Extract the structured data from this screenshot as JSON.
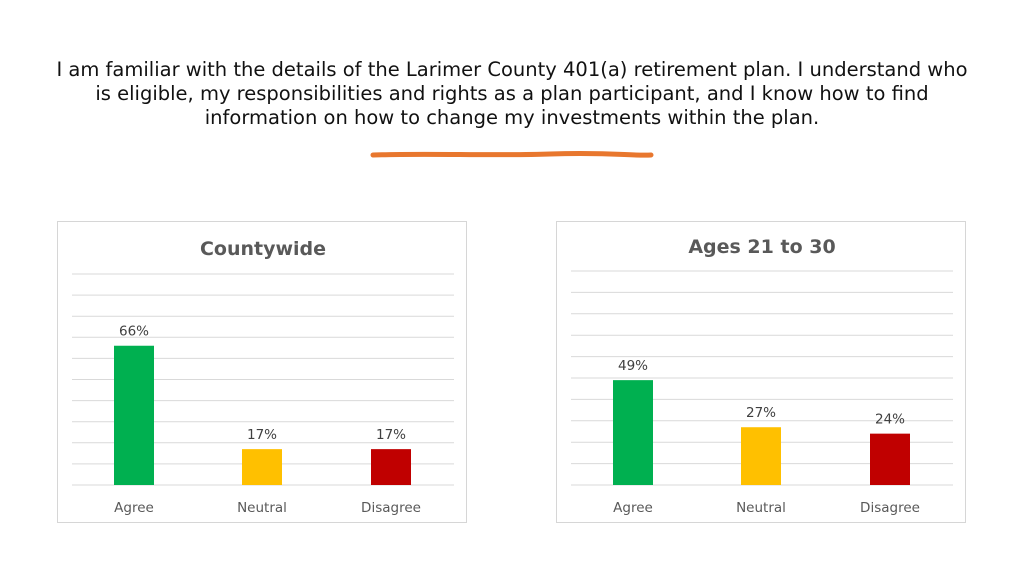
{
  "headline": "I am familiar with the details of the Larimer County 401(a) retirement plan. I understand who is eligible, my responsibilities and rights as a plan participant, and I know how to find information on how to change my investments within the plan.",
  "colors": {
    "accent_underline": "#e8772e",
    "agree": "#00b050",
    "neutral": "#ffc000",
    "disagree": "#c00000",
    "gridline": "#d9d9d9"
  },
  "chart_data": [
    {
      "type": "bar",
      "title": "Countywide",
      "categories": [
        "Agree",
        "Neutral",
        "Disagree"
      ],
      "values": [
        66,
        17,
        17
      ],
      "data_labels": [
        "66%",
        "17%",
        "17%"
      ],
      "bar_colors": [
        "#00b050",
        "#ffc000",
        "#c00000"
      ],
      "ylim": [
        0,
        100
      ],
      "grid": true,
      "legend": "none"
    },
    {
      "type": "bar",
      "title": "Ages 21 to 30",
      "categories": [
        "Agree",
        "Neutral",
        "Disagree"
      ],
      "values": [
        49,
        27,
        24
      ],
      "data_labels": [
        "49%",
        "27%",
        "24%"
      ],
      "bar_colors": [
        "#00b050",
        "#ffc000",
        "#c00000"
      ],
      "ylim": [
        0,
        100
      ],
      "grid": true,
      "legend": "none"
    }
  ]
}
